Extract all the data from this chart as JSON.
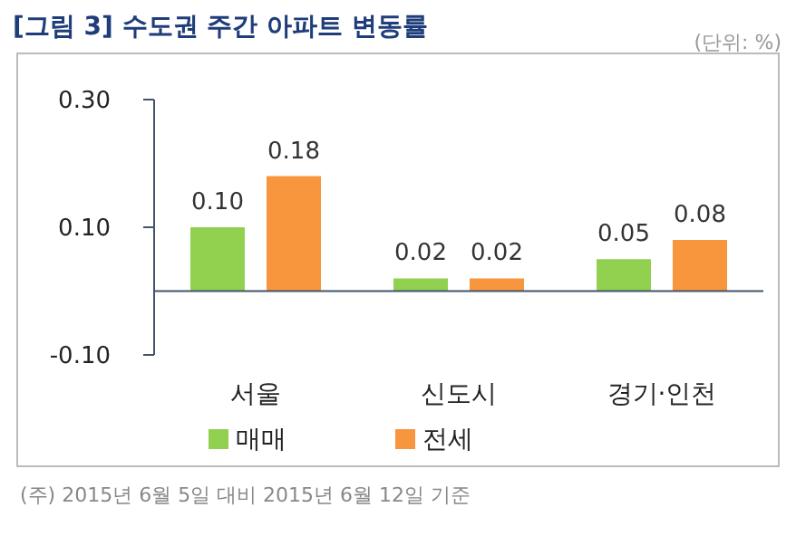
{
  "chart_data": {
    "type": "bar",
    "title": "[그림 3] 수도권 주간 아파트 변동률",
    "categories": [
      "서울",
      "신도시",
      "경기·인천"
    ],
    "series": [
      {
        "name": "매매",
        "color": "#92d050",
        "values": [
          0.1,
          0.02,
          0.05
        ],
        "value_labels": [
          "0.10",
          "0.02",
          "0.05"
        ]
      },
      {
        "name": "전세",
        "color": "#f7963c",
        "values": [
          0.18,
          0.02,
          0.08
        ],
        "value_labels": [
          "0.18",
          "0.02",
          "0.08"
        ]
      }
    ],
    "ylim": [
      -0.1,
      0.3
    ],
    "yticks": [
      {
        "value": -0.1,
        "label": "-0.10"
      },
      {
        "value": 0.1,
        "label": "0.10"
      },
      {
        "value": 0.3,
        "label": "0.30"
      }
    ],
    "grid": false,
    "legend": "bottom",
    "annotations": [
      "(단위: %)",
      "(주) 2015년 6월 5일 대비 2015년 6월 12일 기준"
    ]
  }
}
